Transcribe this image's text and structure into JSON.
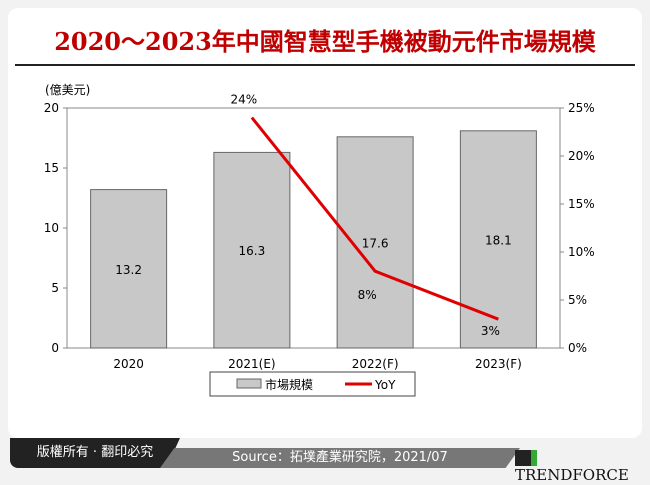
{
  "title": "2020～2023年中國智慧型手機被動元件市場規模",
  "footer": {
    "copyright": "版權所有 · 翻印必究",
    "source": "Source：拓墣產業研究院，2021/07",
    "logo": "TRENDFORCE"
  },
  "colors": {
    "bar": "#c8c8c8",
    "line": "#e00000",
    "title": "#c00000"
  },
  "chart_data": {
    "type": "bar+line",
    "categories": [
      "2020",
      "2021(E)",
      "2022(F)",
      "2023(F)"
    ],
    "ylabel": "(億美元)",
    "ylim": [
      0,
      20
    ],
    "yticks": [
      "0",
      "5",
      "10",
      "15",
      "20"
    ],
    "y2lim": [
      0,
      25
    ],
    "y2ticks": [
      "0%",
      "5%",
      "10%",
      "15%",
      "20%",
      "25%"
    ],
    "grid": false,
    "legend": "bottom",
    "series": [
      {
        "name": "市場規模",
        "type": "bar",
        "values": [
          13.2,
          16.3,
          17.6,
          18.1
        ],
        "labels": [
          "13.2",
          "16.3",
          "17.6",
          "18.1"
        ]
      },
      {
        "name": "YoY",
        "type": "line",
        "axis": "right",
        "values": [
          null,
          24,
          8,
          3
        ],
        "labels": [
          "",
          "24%",
          "8%",
          "3%"
        ]
      }
    ]
  }
}
